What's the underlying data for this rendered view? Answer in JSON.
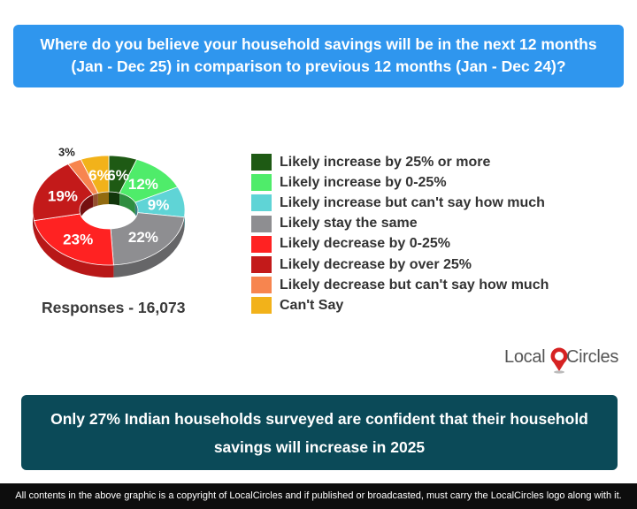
{
  "question": {
    "line1": "Where do you believe your household savings will be in the next 12 months",
    "line2": "(Jan - Dec 25) in comparison to previous 12 months (Jan - Dec 24)?"
  },
  "responses_label": "Responses - 16,073",
  "logo": {
    "text_local": "Local",
    "text_circles": "Circles"
  },
  "conclusion": {
    "line1": "Only 27% Indian households surveyed are confident that their household",
    "line2": "savings will increase in 2025"
  },
  "footer": "All contents in the above graphic is a copyright of LocalCircles and if published or broadcasted, must carry the LocalCircles logo along with it.",
  "chart_data": {
    "type": "pie",
    "variant": "donut-3d",
    "legend_position": "right",
    "slices": [
      {
        "label": "Likely increase by 25% or more",
        "value": 6,
        "display": "6%",
        "color": "#1e5a14"
      },
      {
        "label": "Likely increase by 0-25%",
        "value": 12,
        "display": "12%",
        "color": "#4fec6a"
      },
      {
        "label": "Likely increase but can't say how much",
        "value": 9,
        "display": "9%",
        "color": "#5fd4d6"
      },
      {
        "label": "Likely stay the same",
        "value": 22,
        "display": "22%",
        "color": "#8e8e91"
      },
      {
        "label": "Likely decrease by 0-25%",
        "value": 23,
        "display": "23%",
        "color": "#ff2222"
      },
      {
        "label": "Likely decrease by over 25%",
        "value": 19,
        "display": "19%",
        "color": "#c31a1a"
      },
      {
        "label": "Likely decrease but can't say how much",
        "value": 3,
        "display": "3%",
        "color": "#f7854f"
      },
      {
        "label": "Can't Say",
        "value": 6,
        "display": "6%",
        "color": "#f2b21a"
      }
    ]
  }
}
